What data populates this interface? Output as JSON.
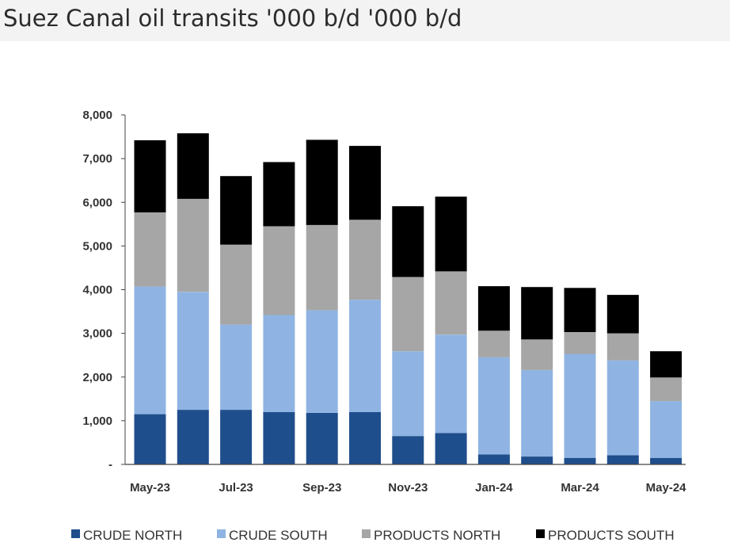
{
  "header": {
    "title": "Suez Canal oil transits '000 b/d '000 b/d"
  },
  "chart_data": {
    "type": "bar",
    "stacked": true,
    "title": "Suez Canal oil transits '000 b/d '000 b/d",
    "xlabel": "",
    "ylabel": "",
    "ylim": [
      0,
      8000
    ],
    "yticks": [
      "-",
      "1,000",
      "2,000",
      "3,000",
      "4,000",
      "5,000",
      "6,000",
      "7,000",
      "8,000"
    ],
    "ytick_values": [
      0,
      1000,
      2000,
      3000,
      4000,
      5000,
      6000,
      7000,
      8000
    ],
    "categories": [
      "May-23",
      "Jun-23",
      "Jul-23",
      "Aug-23",
      "Sep-23",
      "Oct-23",
      "Nov-23",
      "Dec-23",
      "Jan-24",
      "Feb-24",
      "Mar-24",
      "Apr-24",
      "May-24"
    ],
    "xtick_labels": [
      "May-23",
      "",
      "Jul-23",
      "",
      "Sep-23",
      "",
      "Nov-23",
      "",
      "Jan-24",
      "",
      "Mar-24",
      "",
      "May-24"
    ],
    "legend_position": "bottom",
    "series": [
      {
        "name": "CRUDE NORTH",
        "color": "#1f4e8c",
        "values": [
          1150,
          1250,
          1250,
          1200,
          1180,
          1200,
          650,
          720,
          230,
          180,
          150,
          210,
          150
        ]
      },
      {
        "name": "CRUDE SOUTH",
        "color": "#8fb4e3",
        "values": [
          2920,
          2700,
          1950,
          2220,
          2350,
          2570,
          1940,
          2250,
          2220,
          1980,
          2380,
          2170,
          1300
        ]
      },
      {
        "name": "PRODUCTS NORTH",
        "color": "#a6a6a6",
        "values": [
          1700,
          2130,
          1830,
          2030,
          1950,
          1830,
          1700,
          1450,
          610,
          700,
          500,
          620,
          540
        ]
      },
      {
        "name": "PRODUCTS SOUTH",
        "color": "#000000",
        "values": [
          1650,
          1500,
          1570,
          1470,
          1950,
          1690,
          1620,
          1710,
          1020,
          1200,
          1010,
          880,
          600
        ]
      }
    ]
  }
}
